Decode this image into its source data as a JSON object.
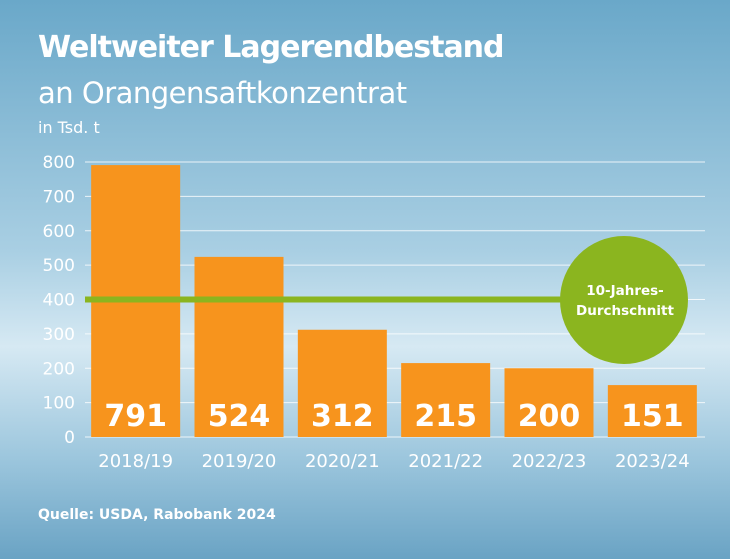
{
  "title": "Weltweiter Lagerendbestand",
  "subtitle": "an Orangensaftkonzentrat",
  "unit": "in Tsd. t",
  "source": "Quelle: USDA, Rabobank 2024",
  "colors": {
    "bar": "#f7941d",
    "average_line": "#8bb51f",
    "badge": "#8bb51f",
    "text": "#ffffff"
  },
  "chart_data": {
    "type": "bar",
    "categories": [
      "2018/19",
      "2019/20",
      "2020/21",
      "2021/22",
      "2022/23",
      "2023/24"
    ],
    "values": [
      791,
      524,
      312,
      215,
      200,
      151
    ],
    "data_labels": [
      "791",
      "524",
      "312",
      "215",
      "200",
      "151"
    ],
    "ylim": [
      0,
      800
    ],
    "yticks": [
      "0",
      "100",
      "200",
      "300",
      "400",
      "500",
      "600",
      "700",
      "800"
    ],
    "grid": true,
    "reference_line": {
      "value": 400,
      "label_line1": "10-Jahres-",
      "label_line2": "Durchschnitt"
    }
  }
}
